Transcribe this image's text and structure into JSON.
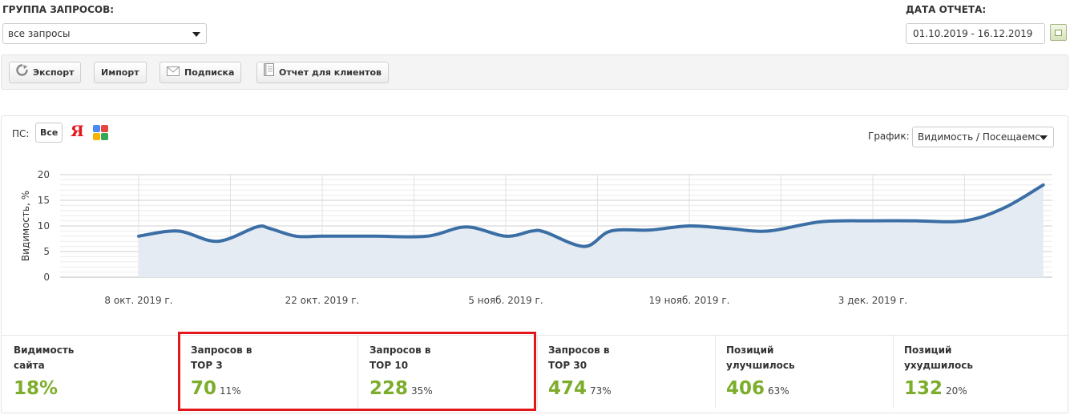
{
  "query_group": {
    "label": "ГРУППА ЗАПРОСОВ:",
    "selected": "все запросы"
  },
  "report_date": {
    "label": "ДАТА ОТЧЕТА:",
    "value": "01.10.2019 - 16.12.2019"
  },
  "toolbar": {
    "export_label": "Экспорт",
    "import_label": "Импорт",
    "subscribe_label": "Подписка",
    "client_report_label": "Отчет для клиентов"
  },
  "search_engines": {
    "label": "ПС:",
    "all_label": "Все",
    "yandex_glyph": "Я"
  },
  "chart_selector": {
    "label": "График:",
    "selected": "Видимость / Посещаемс"
  },
  "chart_data": {
    "type": "area",
    "ylabel": "Видимость, %",
    "ylim": [
      0,
      20
    ],
    "y_ticks": [
      "0",
      "5",
      "10",
      "15",
      "20"
    ],
    "x_ticks": [
      "8 окт. 2019 г.",
      "22 окт. 2019 г.",
      "5 нояб. 2019 г.",
      "19 нояб. 2019 г.",
      "3 дек. 2019 г."
    ],
    "grid": true,
    "line_color": "#3a6ea5",
    "fill_color": "#e4ebf2",
    "series": [
      {
        "x": [
          "2019-10-08",
          "2019-10-11",
          "2019-10-14",
          "2019-10-17",
          "2019-10-18",
          "2019-10-20",
          "2019-10-22",
          "2019-10-26",
          "2019-10-30",
          "2019-11-02",
          "2019-11-05",
          "2019-11-07",
          "2019-11-08",
          "2019-11-11",
          "2019-11-13",
          "2019-11-16",
          "2019-11-19",
          "2019-11-22",
          "2019-11-25",
          "2019-11-29",
          "2019-12-03",
          "2019-12-06",
          "2019-12-10",
          "2019-12-13",
          "2019-12-16"
        ],
        "y": [
          8,
          9,
          7,
          9.8,
          9.5,
          8,
          8,
          8,
          8,
          9.8,
          8,
          9,
          8.8,
          6,
          9,
          9.2,
          10,
          9.5,
          9,
          10.8,
          11,
          11,
          11,
          13.5,
          18
        ]
      }
    ]
  },
  "stats": [
    {
      "title_line1": "Видимость",
      "title_line2": "сайта",
      "value": "18%",
      "pct": ""
    },
    {
      "title_line1": "Запросов в",
      "title_line2": "TOP 3",
      "value": "70",
      "pct": "11%"
    },
    {
      "title_line1": "Запросов в",
      "title_line2": "TOP 10",
      "value": "228",
      "pct": "35%"
    },
    {
      "title_line1": "Запросов в",
      "title_line2": "TOP 30",
      "value": "474",
      "pct": "73%"
    },
    {
      "title_line1": "Позиций",
      "title_line2": "улучшилось",
      "value": "406",
      "pct": "63%"
    },
    {
      "title_line1": "Позиций",
      "title_line2": "ухудшилось",
      "value": "132",
      "pct": "20%"
    }
  ],
  "highlight_color": "#e3161b"
}
